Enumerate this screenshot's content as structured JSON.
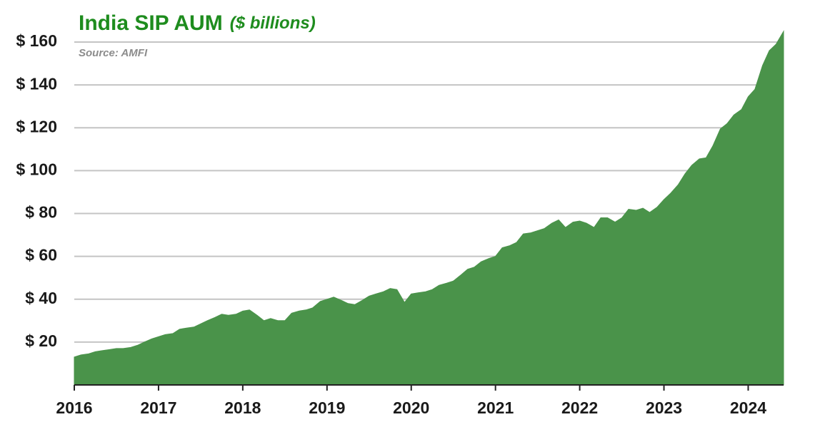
{
  "chart_data": {
    "type": "area",
    "title": "India SIP AUM",
    "subtitle": "($ billions)",
    "source": "Source: AMFI",
    "color": "#4a934a",
    "x": [
      2016,
      2016.08,
      2016.17,
      2016.25,
      2016.33,
      2016.42,
      2016.5,
      2016.58,
      2016.67,
      2016.75,
      2016.83,
      2016.92,
      2017,
      2017.08,
      2017.17,
      2017.25,
      2017.33,
      2017.42,
      2017.5,
      2017.58,
      2017.67,
      2017.75,
      2017.83,
      2017.92,
      2018,
      2018.08,
      2018.17,
      2018.25,
      2018.33,
      2018.42,
      2018.5,
      2018.58,
      2018.67,
      2018.75,
      2018.83,
      2018.92,
      2019,
      2019.08,
      2019.17,
      2019.25,
      2019.33,
      2019.42,
      2019.5,
      2019.58,
      2019.67,
      2019.75,
      2019.83,
      2019.92,
      2020,
      2020.08,
      2020.17,
      2020.25,
      2020.33,
      2020.42,
      2020.5,
      2020.58,
      2020.67,
      2020.75,
      2020.83,
      2020.92,
      2021,
      2021.08,
      2021.17,
      2021.25,
      2021.33,
      2021.42,
      2021.5,
      2021.58,
      2021.67,
      2021.75,
      2021.83,
      2021.92,
      2022,
      2022.08,
      2022.17,
      2022.25,
      2022.33,
      2022.42,
      2022.5,
      2022.58,
      2022.67,
      2022.75,
      2022.83,
      2022.92,
      2023,
      2023.08,
      2023.17,
      2023.25,
      2023.33,
      2023.42,
      2023.5,
      2023.58,
      2023.67,
      2023.75,
      2023.83,
      2023.92,
      2024,
      2024.08,
      2024.17,
      2024.25,
      2024.33,
      2024.42
    ],
    "values": [
      13,
      14,
      14.5,
      15.5,
      16,
      16.5,
      17,
      17,
      17.5,
      18.5,
      20,
      21.5,
      22.5,
      23.5,
      24,
      26,
      26.5,
      27,
      28.5,
      30,
      31.5,
      33,
      32.5,
      33,
      34.5,
      35,
      32.5,
      30,
      31,
      30,
      30,
      33.5,
      34.5,
      35,
      36,
      39,
      40,
      41,
      39.5,
      38,
      37.5,
      39.5,
      41.5,
      42.5,
      43.5,
      45,
      44.5,
      38.5,
      42.5,
      43,
      43.5,
      44.5,
      46.5,
      47.5,
      48.5,
      51,
      54,
      55,
      57.5,
      59,
      60,
      64,
      65,
      66.5,
      70.5,
      71,
      72,
      73,
      75.5,
      77,
      73.5,
      76,
      76.5,
      75.5,
      73.5,
      78,
      78,
      76,
      78,
      82,
      81.5,
      82.5,
      80.5,
      83,
      86.5,
      89.5,
      93.5,
      98.5,
      102.5,
      105.5,
      106,
      111.5,
      119.5,
      122,
      126,
      128.5,
      134.5,
      138,
      149,
      156,
      159,
      165
    ],
    "xlim": [
      2016,
      2024.42
    ],
    "xticks": [
      2016,
      2017,
      2018,
      2019,
      2020,
      2021,
      2022,
      2023,
      2024
    ],
    "ylim": [
      0,
      170
    ],
    "yticks": [
      {
        "value": 20,
        "label": "$ 20"
      },
      {
        "value": 40,
        "label": "$ 40"
      },
      {
        "value": 60,
        "label": "$ 60"
      },
      {
        "value": 80,
        "label": "$ 80"
      },
      {
        "value": 100,
        "label": "$ 100"
      },
      {
        "value": 120,
        "label": "$ 120"
      },
      {
        "value": 140,
        "label": "$ 140"
      },
      {
        "value": 160,
        "label": "$ 160"
      }
    ],
    "grid": true
  }
}
